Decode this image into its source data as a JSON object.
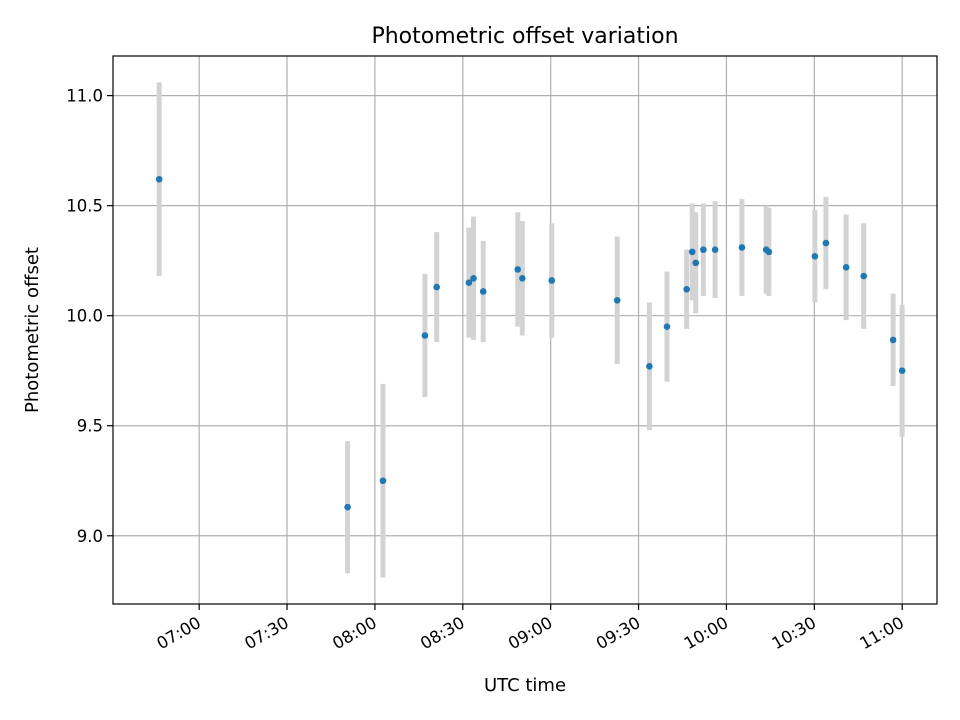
{
  "chart_data": {
    "type": "scatter",
    "title": "Photometric offset variation",
    "xlabel": "UTC time",
    "ylabel": "Photometric offset",
    "x_tick_labels": [
      "07:00",
      "07:30",
      "08:00",
      "08:30",
      "09:00",
      "09:30",
      "10:00",
      "10:30",
      "11:00"
    ],
    "x_tick_values_min": [
      420,
      450,
      480,
      510,
      540,
      570,
      600,
      630,
      660
    ],
    "y_tick_labels": [
      "9.0",
      "9.5",
      "10.0",
      "10.5",
      "11.0"
    ],
    "y_tick_values": [
      9.0,
      9.5,
      10.0,
      10.5,
      11.0
    ],
    "xlim": [
      "06:30:35",
      "11:11:53"
    ],
    "ylim": [
      8.69,
      11.18
    ],
    "grid": true,
    "x_tick_rotation": "30deg",
    "colors": {
      "point": "#1f77b4",
      "errorbar": "#d3d3d3",
      "grid": "#b0b0b0"
    },
    "points": [
      {
        "t": "06:46:21",
        "y": 10.62,
        "err": 0.44
      },
      {
        "t": "07:50:40",
        "y": 9.13,
        "err": 0.3
      },
      {
        "t": "08:02:45",
        "y": 9.25,
        "err": 0.44
      },
      {
        "t": "08:17:04",
        "y": 9.91,
        "err": 0.28
      },
      {
        "t": "08:21:05",
        "y": 10.13,
        "err": 0.25
      },
      {
        "t": "08:32:05",
        "y": 10.15,
        "err": 0.25
      },
      {
        "t": "08:33:39",
        "y": 10.17,
        "err": 0.28
      },
      {
        "t": "08:36:58",
        "y": 10.11,
        "err": 0.23
      },
      {
        "t": "08:48:45",
        "y": 10.21,
        "err": 0.26
      },
      {
        "t": "08:50:19",
        "y": 10.17,
        "err": 0.26
      },
      {
        "t": "09:00:22",
        "y": 10.16,
        "err": 0.26
      },
      {
        "t": "09:22:43",
        "y": 10.07,
        "err": 0.29
      },
      {
        "t": "09:33:42",
        "y": 9.77,
        "err": 0.29
      },
      {
        "t": "09:39:42",
        "y": 9.95,
        "err": 0.25
      },
      {
        "t": "09:46:25",
        "y": 10.12,
        "err": 0.18
      },
      {
        "t": "09:48:19",
        "y": 10.29,
        "err": 0.22
      },
      {
        "t": "09:49:32",
        "y": 10.24,
        "err": 0.23
      },
      {
        "t": "09:52:07",
        "y": 10.3,
        "err": 0.21
      },
      {
        "t": "09:56:08",
        "y": 10.3,
        "err": 0.22
      },
      {
        "t": "10:05:17",
        "y": 10.31,
        "err": 0.22
      },
      {
        "t": "10:13:34",
        "y": 10.3,
        "err": 0.2
      },
      {
        "t": "10:14:29",
        "y": 10.29,
        "err": 0.2
      },
      {
        "t": "10:30:12",
        "y": 10.27,
        "err": 0.21
      },
      {
        "t": "10:33:58",
        "y": 10.33,
        "err": 0.21
      },
      {
        "t": "10:40:52",
        "y": 10.22,
        "err": 0.24
      },
      {
        "t": "10:46:52",
        "y": 10.18,
        "err": 0.24
      },
      {
        "t": "10:56:54",
        "y": 9.89,
        "err": 0.21
      },
      {
        "t": "10:59:59",
        "y": 9.75,
        "err": 0.3
      }
    ]
  }
}
